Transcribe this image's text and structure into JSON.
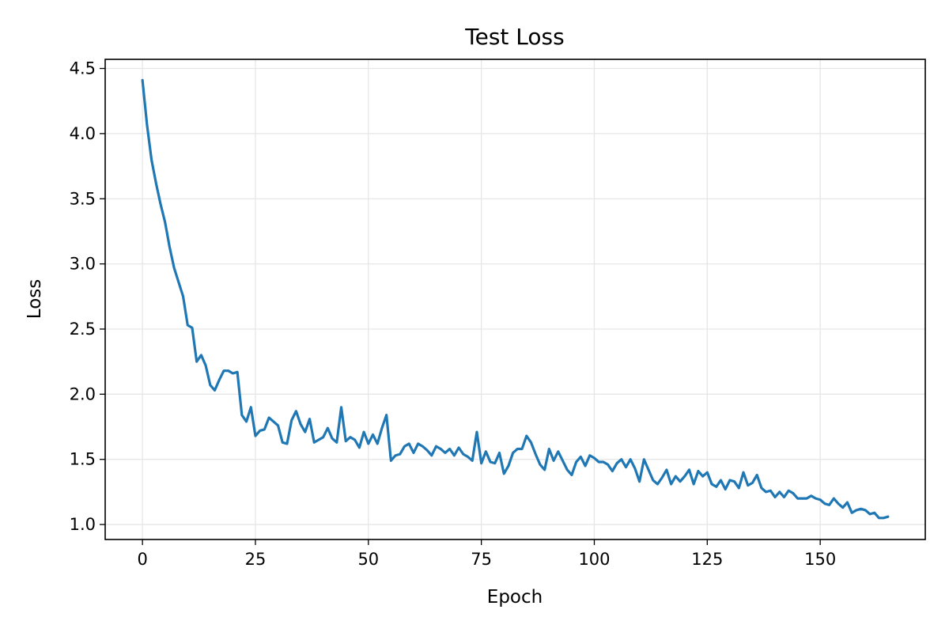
{
  "chart_data": {
    "type": "line",
    "title": "Test Loss",
    "xlabel": "Epoch",
    "ylabel": "Loss",
    "xlim": [
      -8.25,
      173.25
    ],
    "ylim": [
      0.885,
      4.57
    ],
    "x_ticks": [
      0,
      25,
      50,
      75,
      100,
      125,
      150
    ],
    "y_ticks": [
      1.0,
      1.5,
      2.0,
      2.5,
      3.0,
      3.5,
      4.0,
      4.5
    ],
    "y_tick_labels": [
      "1.0",
      "1.5",
      "2.0",
      "2.5",
      "3.0",
      "3.5",
      "4.0",
      "4.5"
    ],
    "grid": true,
    "legend": "none",
    "line_color": "#1f77b4",
    "grid_color": "#e6e6e6",
    "series": [
      {
        "x": [
          0,
          1,
          2,
          3,
          4,
          5,
          6,
          7,
          8,
          9,
          10,
          11,
          12,
          13,
          14,
          15,
          16,
          17,
          18,
          19,
          20,
          21,
          22,
          23,
          24,
          25,
          26,
          27,
          28,
          29,
          30,
          31,
          32,
          33,
          34,
          35,
          36,
          37,
          38,
          39,
          40,
          41,
          42,
          43,
          44,
          45,
          46,
          47,
          48,
          49,
          50,
          51,
          52,
          53,
          54,
          55,
          56,
          57,
          58,
          59,
          60,
          61,
          62,
          63,
          64,
          65,
          66,
          67,
          68,
          69,
          70,
          71,
          72,
          73,
          74,
          75,
          76,
          77,
          78,
          79,
          80,
          81,
          82,
          83,
          84,
          85,
          86,
          87,
          88,
          89,
          90,
          91,
          92,
          93,
          94,
          95,
          96,
          97,
          98,
          99,
          100,
          101,
          102,
          103,
          104,
          105,
          106,
          107,
          108,
          109,
          110,
          111,
          112,
          113,
          114,
          115,
          116,
          117,
          118,
          119,
          120,
          121,
          122,
          123,
          124,
          125,
          126,
          127,
          128,
          129,
          130,
          131,
          132,
          133,
          134,
          135,
          136,
          137,
          138,
          139,
          140,
          141,
          142,
          143,
          144,
          145,
          146,
          147,
          148,
          149,
          150,
          151,
          152,
          153,
          154,
          155,
          156,
          157,
          158,
          159,
          160,
          161,
          162,
          163,
          164,
          165
        ],
        "values": [
          4.41,
          4.07,
          3.8,
          3.62,
          3.46,
          3.32,
          3.13,
          2.97,
          2.86,
          2.75,
          2.53,
          2.51,
          2.25,
          2.3,
          2.22,
          2.07,
          2.03,
          2.11,
          2.18,
          2.18,
          2.16,
          2.17,
          1.84,
          1.79,
          1.9,
          1.68,
          1.72,
          1.73,
          1.82,
          1.79,
          1.76,
          1.63,
          1.62,
          1.8,
          1.87,
          1.77,
          1.71,
          1.81,
          1.63,
          1.65,
          1.67,
          1.74,
          1.66,
          1.63,
          1.9,
          1.64,
          1.67,
          1.65,
          1.59,
          1.71,
          1.62,
          1.69,
          1.62,
          1.74,
          1.84,
          1.49,
          1.53,
          1.54,
          1.6,
          1.62,
          1.55,
          1.62,
          1.6,
          1.57,
          1.53,
          1.6,
          1.58,
          1.55,
          1.58,
          1.53,
          1.59,
          1.54,
          1.52,
          1.49,
          1.71,
          1.47,
          1.56,
          1.48,
          1.47,
          1.55,
          1.39,
          1.45,
          1.55,
          1.58,
          1.58,
          1.68,
          1.63,
          1.54,
          1.46,
          1.42,
          1.58,
          1.49,
          1.56,
          1.49,
          1.42,
          1.38,
          1.48,
          1.52,
          1.45,
          1.53,
          1.51,
          1.48,
          1.48,
          1.46,
          1.41,
          1.47,
          1.5,
          1.44,
          1.5,
          1.43,
          1.33,
          1.5,
          1.42,
          1.34,
          1.31,
          1.36,
          1.42,
          1.31,
          1.37,
          1.33,
          1.37,
          1.42,
          1.31,
          1.41,
          1.37,
          1.4,
          1.31,
          1.29,
          1.34,
          1.27,
          1.34,
          1.33,
          1.28,
          1.4,
          1.3,
          1.32,
          1.38,
          1.28,
          1.25,
          1.26,
          1.21,
          1.25,
          1.21,
          1.26,
          1.24,
          1.2,
          1.2,
          1.2,
          1.22,
          1.2,
          1.19,
          1.16,
          1.15,
          1.2,
          1.16,
          1.13,
          1.17,
          1.09,
          1.11,
          1.12,
          1.11,
          1.08,
          1.09,
          1.05,
          1.05,
          1.06
        ]
      }
    ]
  }
}
